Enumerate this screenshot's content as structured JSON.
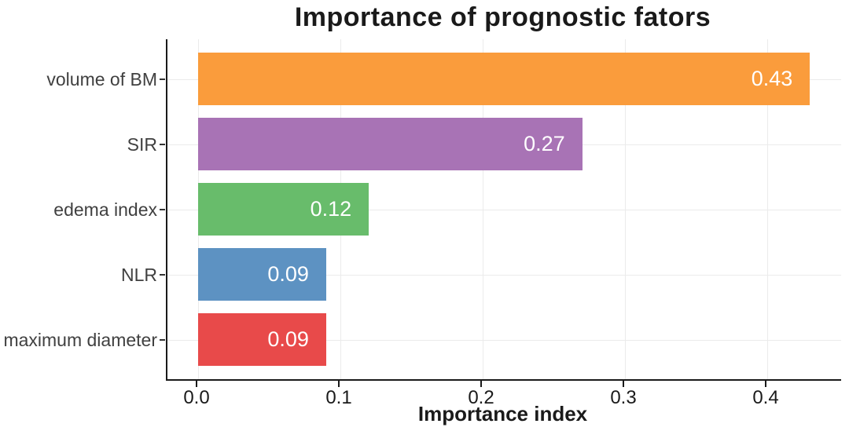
{
  "chart_data": {
    "type": "bar",
    "orientation": "horizontal",
    "title": "Importance of prognostic fators",
    "xlabel": "Importance index",
    "ylabel": "",
    "categories": [
      "volume of BM",
      "SIR",
      "edema index",
      "NLR",
      "maximum diameter"
    ],
    "values": [
      0.43,
      0.27,
      0.12,
      0.09,
      0.09
    ],
    "value_labels": [
      "0.43",
      "0.27",
      "0.12",
      "0.09",
      "0.09"
    ],
    "bar_colors": [
      "#FA9C3C",
      "#A873B5",
      "#68BC6B",
      "#5D92C2",
      "#E84A4A"
    ],
    "value_label_color": "#ffffff",
    "x_ticks": [
      {
        "label": "0.0",
        "value": 0.0
      },
      {
        "label": "0.1",
        "value": 0.1
      },
      {
        "label": "0.2",
        "value": 0.2
      },
      {
        "label": "0.3",
        "value": 0.3
      },
      {
        "label": "0.4",
        "value": 0.4
      }
    ],
    "xlim": [
      0,
      0.452
    ],
    "grid": {
      "vertical_at_ticks": true,
      "horizontal_at_categories": true,
      "color": "#ebebeb"
    },
    "axis_color": "#1a1a1a",
    "legend": "none"
  }
}
